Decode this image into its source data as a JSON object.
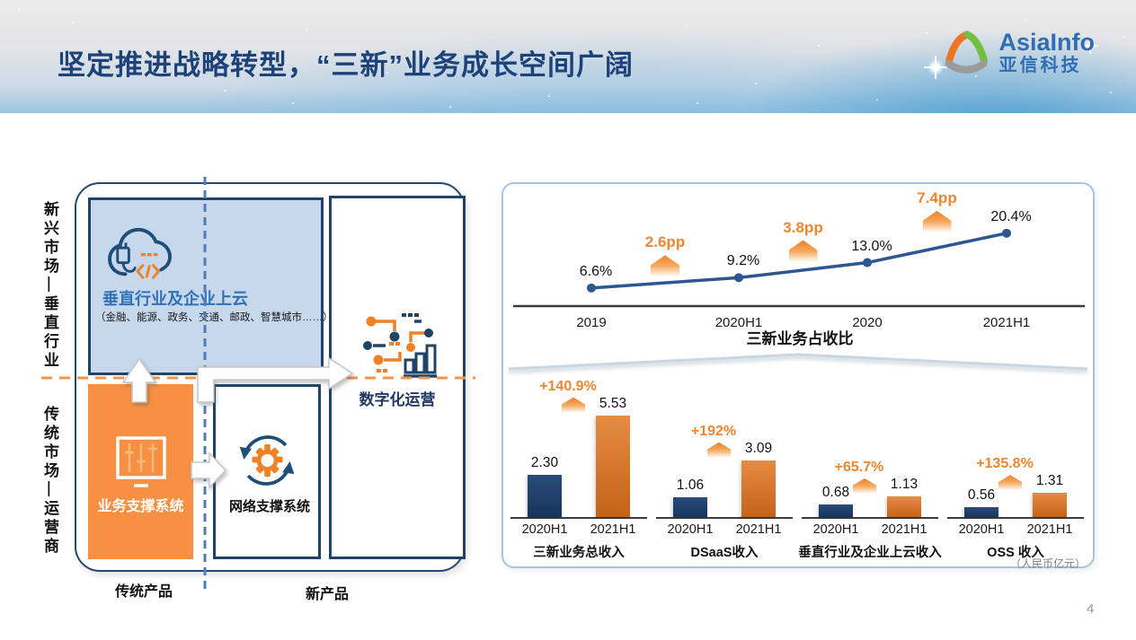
{
  "header": {
    "title": "坚定推进战略转型，“三新”业务成长空间广阔",
    "logo": {
      "name_en": "AsiaInfo",
      "name_cn": "亚信科技"
    }
  },
  "diagram": {
    "market_label_top": "新兴市场—垂直行业",
    "market_label_bottom": "传统市场—运营商",
    "product_label_traditional": "传统产品",
    "product_label_new": "新产品",
    "cloud_box": {
      "title": "垂直行业及企业上云",
      "subtitle": "（金融、能源、政务、交通、邮政、智慧城市……）"
    },
    "bss_box": {
      "title": "业务支撑系统"
    },
    "nss_box": {
      "title": "网络支撑系统"
    },
    "digital_box": {
      "title": "数字化运营"
    }
  },
  "chart_data": [
    {
      "type": "line",
      "title": "三新业务占收比",
      "categories": [
        "2019",
        "2020H1",
        "2020",
        "2021H1"
      ],
      "values": [
        6.6,
        9.2,
        13.0,
        20.4
      ],
      "value_labels": [
        "6.6%",
        "9.2%",
        "13.0%",
        "20.4%"
      ],
      "deltas": [
        "2.6pp",
        "3.8pp",
        "7.4pp"
      ],
      "ylim": [
        0,
        24
      ],
      "grid": false,
      "legend": "none",
      "line_color": "#2E5690",
      "accent_color": "#F0862E"
    },
    {
      "type": "bar",
      "unit": "（人民币亿元）",
      "categories": [
        "2020H1",
        "2021H1"
      ],
      "bar_colors": [
        "#1E3B62",
        "#D0702A"
      ],
      "groups": [
        {
          "title": "三新业务总收入",
          "values": [
            2.3,
            5.53
          ],
          "value_labels": [
            "2.30",
            "5.53"
          ],
          "growth": "+140.9%"
        },
        {
          "title": "DSaaS收入",
          "values": [
            1.06,
            3.09
          ],
          "value_labels": [
            "1.06",
            "3.09"
          ],
          "growth": "+192%"
        },
        {
          "title": "垂直行业及企业上云收入",
          "values": [
            0.68,
            1.13
          ],
          "value_labels": [
            "0.68",
            "1.13"
          ],
          "growth": "+65.7%"
        },
        {
          "title": "OSS 收入",
          "values": [
            0.56,
            1.31
          ],
          "value_labels": [
            "0.56",
            "1.31"
          ],
          "growth": "+135.8%"
        }
      ]
    }
  ],
  "footer": {
    "page_number": "4"
  }
}
